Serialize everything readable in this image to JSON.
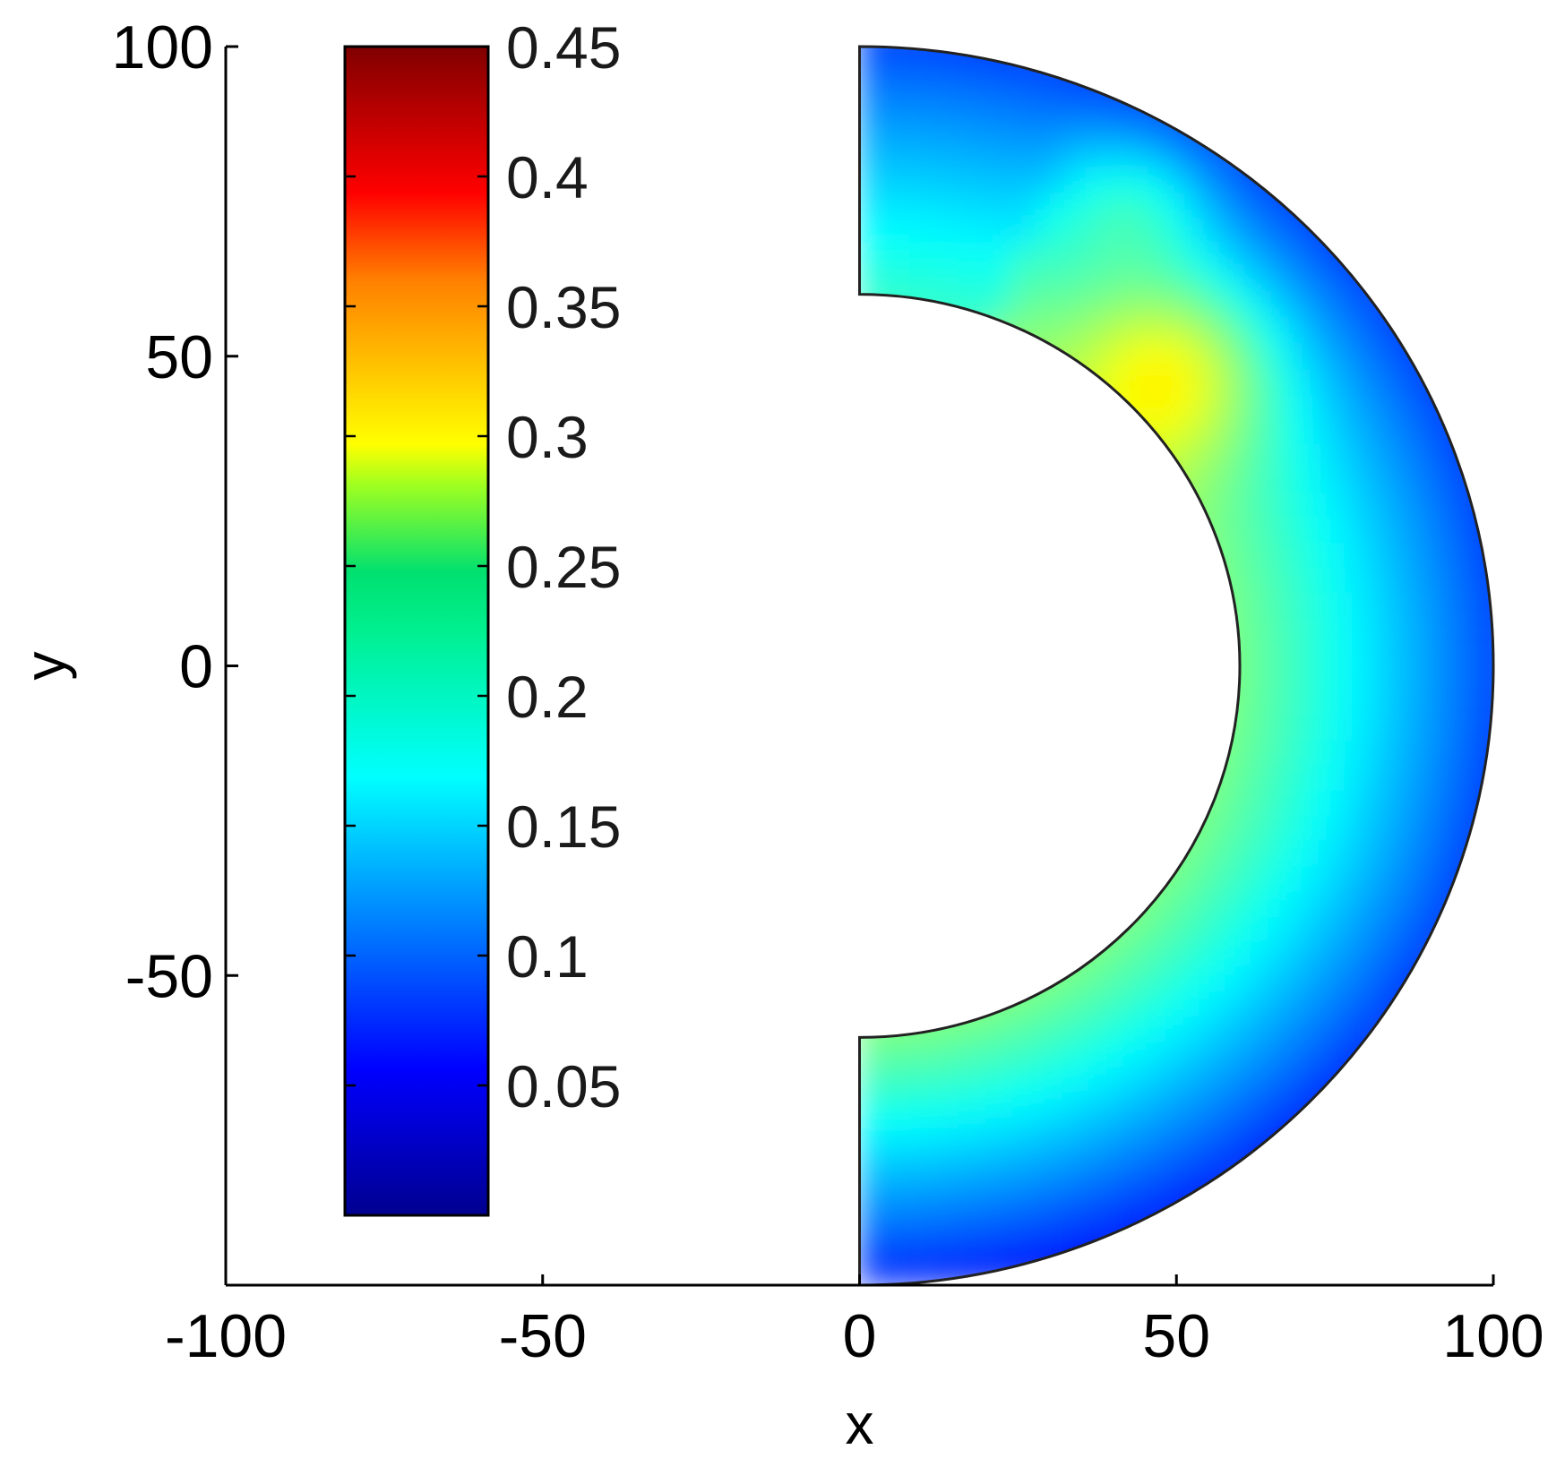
{
  "chart_data": {
    "type": "heatmap",
    "title": "",
    "xlabel": "x",
    "ylabel": "y",
    "xlim": [
      -100,
      100
    ],
    "ylim": [
      -100,
      100
    ],
    "x_ticks": [
      "-100",
      "-50",
      "0",
      "50",
      "100"
    ],
    "y_ticks": [
      "100",
      "50",
      "0",
      "-50"
    ],
    "region": {
      "shape": "half-annulus",
      "inner_radius": 60,
      "outer_radius": 100,
      "angle_range_deg": [
        -90,
        90
      ]
    },
    "colorbar": {
      "colormap": "jet",
      "range": [
        0,
        0.45
      ],
      "tick_labels": [
        "0.45",
        "0.4",
        "0.35",
        "0.3",
        "0.25",
        "0.2",
        "0.15",
        "0.1",
        "0.05"
      ],
      "tick_values": [
        0.45,
        0.4,
        0.35,
        0.3,
        0.25,
        0.2,
        0.15,
        0.1,
        0.05
      ]
    },
    "field": {
      "description_values": {
        "inner_edge_midplane": 0.22,
        "peak_near_x50_y48": 0.26,
        "mid_radius": 0.17,
        "outer_edge": 0.11,
        "bottom_outer": 0.09
      }
    },
    "grid": false
  },
  "colors": {
    "axis": "#000000",
    "background": "#ffffff"
  }
}
